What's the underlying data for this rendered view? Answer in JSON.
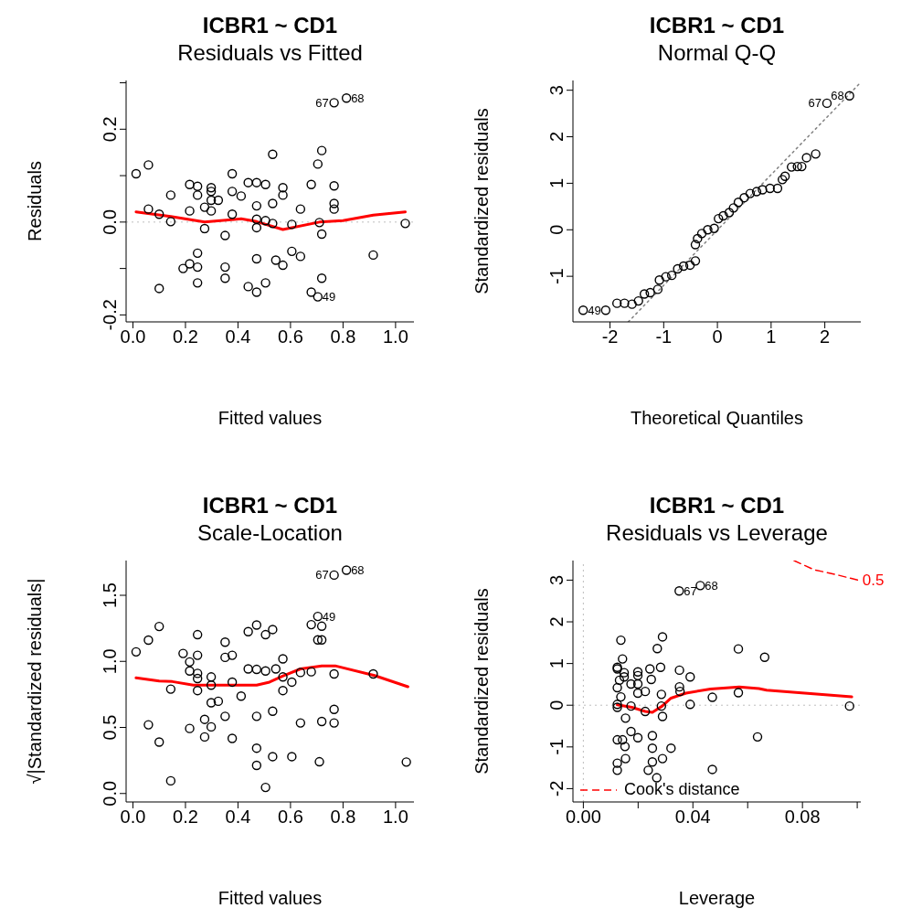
{
  "chart_data": [
    {
      "type": "scatter",
      "title": "ICBR1 ~ CD1",
      "subtitle": "Residuals vs Fitted",
      "xlabel": "Fitted values",
      "ylabel": "Residuals",
      "xlim": [
        -0.026,
        1.07
      ],
      "ylim": [
        -0.215,
        0.305
      ],
      "xticks": [
        {
          "value": 0,
          "label": "0.0"
        },
        0.2,
        0.4,
        0.6,
        0.8,
        {
          "value": 1,
          "label": "1.0"
        }
      ],
      "yticks": [
        -0.2,
        {
          "value": -0.1,
          "label": null
        },
        {
          "value": 0,
          "label": "0.0"
        },
        {
          "value": 0.1,
          "label": null
        },
        0.2,
        {
          "value": 0.3,
          "label": null
        }
      ],
      "marker": "circle",
      "legend": false,
      "ref_lines": [
        {
          "axis": "y",
          "value": 0,
          "color": "#bebebe",
          "line_style": "dotted"
        }
      ],
      "annotations": [
        {
          "text": "67",
          "x": 0.766,
          "y": 0.257
        },
        {
          "text": "68",
          "x": 0.813,
          "y": 0.267
        },
        {
          "text": "49",
          "x": 0.704,
          "y": -0.161
        }
      ],
      "series": [
        {
          "color": "#000000",
          "x": [
            0.012,
            0.059,
            0.059,
            0.1,
            0.1,
            0.144,
            0.144,
            0.191,
            0.216,
            0.216,
            0.216,
            0.246,
            0.246,
            0.246,
            0.246,
            0.246,
            0.273,
            0.273,
            0.298,
            0.298,
            0.298,
            0.298,
            0.325,
            0.351,
            0.351,
            0.351,
            0.378,
            0.378,
            0.378,
            0.412,
            0.439,
            0.439,
            0.471,
            0.471,
            0.471,
            0.471,
            0.471,
            0.471,
            0.505,
            0.505,
            0.505,
            0.532,
            0.532,
            0.532,
            0.544,
            0.571,
            0.571,
            0.571,
            0.605,
            0.605,
            0.638,
            0.638,
            0.679,
            0.679,
            0.704,
            0.704,
            0.71,
            0.719,
            0.719,
            0.719,
            0.766,
            0.813,
            0.766,
            0.766,
            0.766,
            0.915,
            1.037
          ],
          "values": [
            0.104,
            0.123,
            0.028,
            0.017,
            -0.143,
            0.058,
            0.001,
            -0.1,
            0.081,
            0.024,
            -0.09,
            0.077,
            0.058,
            -0.067,
            -0.097,
            -0.131,
            0.032,
            -0.014,
            0.074,
            0.066,
            0.047,
            0.024,
            0.047,
            -0.029,
            -0.097,
            -0.121,
            0.104,
            0.066,
            0.017,
            0.056,
            0.085,
            -0.139,
            0.085,
            0.035,
            0.006,
            -0.012,
            -0.079,
            -0.151,
            0.081,
            0.003,
            -0.131,
            0.146,
            0.04,
            -0.003,
            -0.082,
            0.074,
            0.058,
            -0.093,
            -0.005,
            -0.063,
            0.028,
            -0.074,
            0.081,
            -0.151,
            0.125,
            -0.161,
            -0.001,
            0.154,
            -0.026,
            -0.121,
            0.257,
            0.267,
            0.078,
            0.04,
            0.028,
            -0.071,
            -0.003
          ]
        },
        {
          "type": "line",
          "marker": "none",
          "color": "#ff0000",
          "line_style": "solid",
          "x": [
            0.012,
            0.144,
            0.273,
            0.412,
            0.471,
            0.571,
            0.71,
            0.8,
            0.915,
            1.037
          ],
          "values": [
            0.022,
            0.012,
            0.0,
            0.007,
            0.001,
            -0.016,
            0.0,
            0.003,
            0.015,
            0.022
          ]
        }
      ]
    },
    {
      "type": "scatter",
      "title": "ICBR1 ~ CD1",
      "subtitle": "Normal Q-Q",
      "xlabel": "Theoretical Quantiles",
      "ylabel": "Standardized residuals",
      "xlim": [
        -2.69,
        2.67
      ],
      "ylim": [
        -1.98,
        3.21
      ],
      "xticks": [
        -2,
        -1,
        0,
        1,
        2
      ],
      "yticks": [
        -1,
        0,
        1,
        2,
        3
      ],
      "marker": "circle",
      "legend": false,
      "annotations": [
        {
          "text": "49",
          "x": -2.5,
          "y": -1.73
        },
        {
          "text": "67",
          "x": 2.04,
          "y": 2.72
        },
        {
          "text": "68",
          "x": 2.46,
          "y": 2.88
        }
      ],
      "series": [
        {
          "color": "#000000",
          "x": [
            -2.5,
            -2.08,
            -1.87,
            -1.73,
            -1.59,
            -1.47,
            -1.36,
            -1.25,
            -1.11,
            -1.08,
            -0.96,
            -0.85,
            -0.74,
            -0.63,
            -0.51,
            -0.41,
            -0.41,
            -0.37,
            -0.29,
            -0.18,
            -0.06,
            0.02,
            0.11,
            0.22,
            0.3,
            0.39,
            0.5,
            0.61,
            0.73,
            0.84,
            0.98,
            1.12,
            1.21,
            1.26,
            1.38,
            1.49,
            1.57,
            1.66,
            1.83,
            2.04,
            2.46
          ],
          "values": [
            -1.73,
            -1.73,
            -1.58,
            -1.58,
            -1.6,
            -1.53,
            -1.38,
            -1.35,
            -1.28,
            -1.08,
            -1.01,
            -0.98,
            -0.84,
            -0.78,
            -0.76,
            -0.67,
            -0.32,
            -0.19,
            -0.08,
            0,
            0.03,
            0.24,
            0.3,
            0.37,
            0.47,
            0.59,
            0.69,
            0.78,
            0.82,
            0.86,
            0.89,
            0.89,
            1.08,
            1.15,
            1.35,
            1.36,
            1.36,
            1.55,
            1.63,
            2.72,
            2.88
          ]
        },
        {
          "type": "line",
          "marker": "none",
          "color": "#808080",
          "line_style": "dotted",
          "x": [
            -1.66,
            2.67
          ],
          "values": [
            -1.98,
            3.17
          ]
        }
      ]
    },
    {
      "type": "scatter",
      "title": "ICBR1 ~ CD1",
      "subtitle": "Scale-Location",
      "xlabel": "Fitted values",
      "ylabel": "√|Standardized residuals|",
      "xlim": [
        -0.026,
        1.07
      ],
      "ylim": [
        -0.064,
        1.763
      ],
      "xticks": [
        {
          "value": 0,
          "label": "0.0"
        },
        0.2,
        0.4,
        0.6,
        0.8,
        {
          "value": 1,
          "label": "1.0"
        }
      ],
      "yticks": [
        {
          "value": 0,
          "label": "0.0"
        },
        0.5,
        {
          "value": 1,
          "label": "1.0"
        },
        1.5
      ],
      "marker": "circle",
      "legend": false,
      "annotations": [
        {
          "text": "67",
          "x": 0.766,
          "y": 1.653
        },
        {
          "text": "68",
          "x": 0.813,
          "y": 1.69
        },
        {
          "text": "49",
          "x": 0.704,
          "y": 1.34
        }
      ],
      "series": [
        {
          "color": "#000000",
          "x": [
            0.012,
            0.059,
            0.059,
            0.1,
            0.1,
            0.144,
            0.144,
            0.191,
            0.216,
            0.216,
            0.216,
            0.246,
            0.246,
            0.246,
            0.246,
            0.246,
            0.273,
            0.273,
            0.298,
            0.298,
            0.298,
            0.298,
            0.325,
            0.351,
            0.351,
            0.351,
            0.378,
            0.378,
            0.378,
            0.412,
            0.439,
            0.439,
            0.471,
            0.471,
            0.471,
            0.471,
            0.471,
            0.505,
            0.505,
            0.505,
            0.532,
            0.532,
            0.532,
            0.544,
            0.571,
            0.571,
            0.571,
            0.605,
            0.605,
            0.638,
            0.638,
            0.679,
            0.679,
            0.704,
            0.704,
            0.71,
            0.719,
            0.719,
            0.719,
            0.766,
            0.766,
            0.766,
            0.766,
            0.813,
            0.915,
            1.041
          ],
          "values": [
            1.072,
            1.161,
            0.52,
            1.264,
            0.389,
            0.79,
            0.096,
            1.06,
            0.996,
            0.927,
            0.492,
            1.202,
            1.046,
            0.909,
            0.87,
            0.779,
            0.561,
            0.428,
            0.882,
            0.82,
            0.687,
            0.504,
            0.698,
            1.145,
            1.03,
            0.584,
            1.046,
            0.843,
            0.417,
            0.737,
            1.225,
            0.943,
            1.275,
            0.939,
            0.584,
            0.343,
            0.213,
            1.202,
            0.927,
            0.046,
            1.241,
            0.623,
            0.279,
            0.943,
            1.019,
            0.882,
            0.779,
            0.843,
            0.279,
            0.916,
            0.534,
            1.278,
            0.921,
            1.34,
            1.163,
            0.24,
            1.266,
            1.163,
            0.545,
            1.653,
            0.905,
            0.637,
            0.534,
            1.69,
            0.905,
            0.238
          ]
        },
        {
          "type": "line",
          "marker": "none",
          "color": "#ff0000",
          "line_style": "solid",
          "x": [
            0.012,
            0.1,
            0.15,
            0.23,
            0.33,
            0.471,
            0.52,
            0.57,
            0.638,
            0.719,
            0.77,
            0.92,
            1.047
          ],
          "values": [
            0.875,
            0.852,
            0.847,
            0.82,
            0.82,
            0.82,
            0.843,
            0.888,
            0.943,
            0.966,
            0.966,
            0.893,
            0.808
          ]
        }
      ]
    },
    {
      "type": "scatter",
      "title": "ICBR1 ~ CD1",
      "subtitle": "Residuals vs Leverage",
      "xlabel": "Leverage",
      "ylabel": "Standardized residuals",
      "xlim": [
        -0.0038,
        0.1013
      ],
      "ylim": [
        -2.32,
        3.47
      ],
      "xticks": [
        {
          "value": 0,
          "label": "0.00"
        },
        {
          "value": 0.02,
          "label": null
        },
        0.04,
        {
          "value": 0.06,
          "label": null
        },
        0.08,
        {
          "value": 0.1,
          "label": null
        }
      ],
      "yticks": [
        -2,
        -1,
        0,
        1,
        2,
        3
      ],
      "marker": "circle",
      "legend": "bottom left",
      "ref_lines": [
        {
          "axis": "y",
          "value": 0,
          "color": "#bebebe",
          "line_style": "dotted"
        },
        {
          "axis": "x",
          "value": 0,
          "color": "#bebebe",
          "line_style": "dotted"
        }
      ],
      "annotations": [
        {
          "text": "67",
          "x": 0.035,
          "y": 2.74
        },
        {
          "text": "68",
          "x": 0.0427,
          "y": 2.87
        },
        {
          "text": "0.5",
          "x": 0.1002,
          "y": 3.0
        }
      ],
      "series": [
        {
          "color": "#000000",
          "x": [
            0.0124,
            0.0124,
            0.0124,
            0.0124,
            0.0124,
            0.0124,
            0.0124,
            0.0124,
            0.0132,
            0.0137,
            0.0137,
            0.0143,
            0.0143,
            0.0149,
            0.0149,
            0.0152,
            0.0154,
            0.0154,
            0.0174,
            0.0174,
            0.0174,
            0.0199,
            0.0199,
            0.0199,
            0.0199,
            0.0199,
            0.0226,
            0.0226,
            0.0237,
            0.0243,
            0.0248,
            0.0252,
            0.0252,
            0.0252,
            0.0268,
            0.027,
            0.0282,
            0.0285,
            0.0285,
            0.0289,
            0.0289,
            0.0289,
            0.032,
            0.0351,
            0.0351,
            0.0353,
            0.035,
            0.0427,
            0.039,
            0.039,
            0.0471,
            0.0471,
            0.0566,
            0.0566,
            0.0636,
            0.0662,
            0.0972
          ],
          "values": [
            0.87,
            0.91,
            0.42,
            0.02,
            -0.05,
            -0.83,
            -1.39,
            -1.56,
            0.6,
            1.56,
            0.2,
            1.11,
            -0.83,
            0.78,
            0.68,
            -0.99,
            -0.31,
            -1.28,
            0.51,
            -0.02,
            -0.63,
            0.8,
            0.71,
            0.51,
            0.29,
            -0.78,
            0.33,
            -0.15,
            -1.56,
            0.87,
            0.62,
            -0.73,
            -1.03,
            -1.36,
            -1.74,
            1.36,
            0.91,
            0.26,
            -0.02,
            1.64,
            -0.27,
            -1.28,
            -1.03,
            0.84,
            0.44,
            0.33,
            2.74,
            2.87,
            0.68,
            0.02,
            0.19,
            -1.54,
            1.35,
            0.3,
            -0.76,
            1.15,
            -0.02
          ]
        },
        {
          "type": "line",
          "marker": "none",
          "color": "#ff0000",
          "line_style": "solid",
          "x": [
            0.0124,
            0.0177,
            0.0226,
            0.0252,
            0.0288,
            0.032,
            0.0375,
            0.0464,
            0.0569,
            0.0641,
            0.0669,
            0.098
          ],
          "values": [
            0.01,
            -0.05,
            -0.15,
            -0.17,
            -0.02,
            0.17,
            0.29,
            0.39,
            0.44,
            0.4,
            0.36,
            0.2
          ]
        },
        {
          "type": "line",
          "marker": "none",
          "name": "Cook's distance",
          "color": "#ff0000",
          "line_style": "dashed",
          "x": [
            0.0769,
            0.0842,
            0.0919,
            0.1002
          ],
          "values": [
            3.47,
            3.25,
            3.14,
            3.0
          ]
        }
      ]
    }
  ]
}
